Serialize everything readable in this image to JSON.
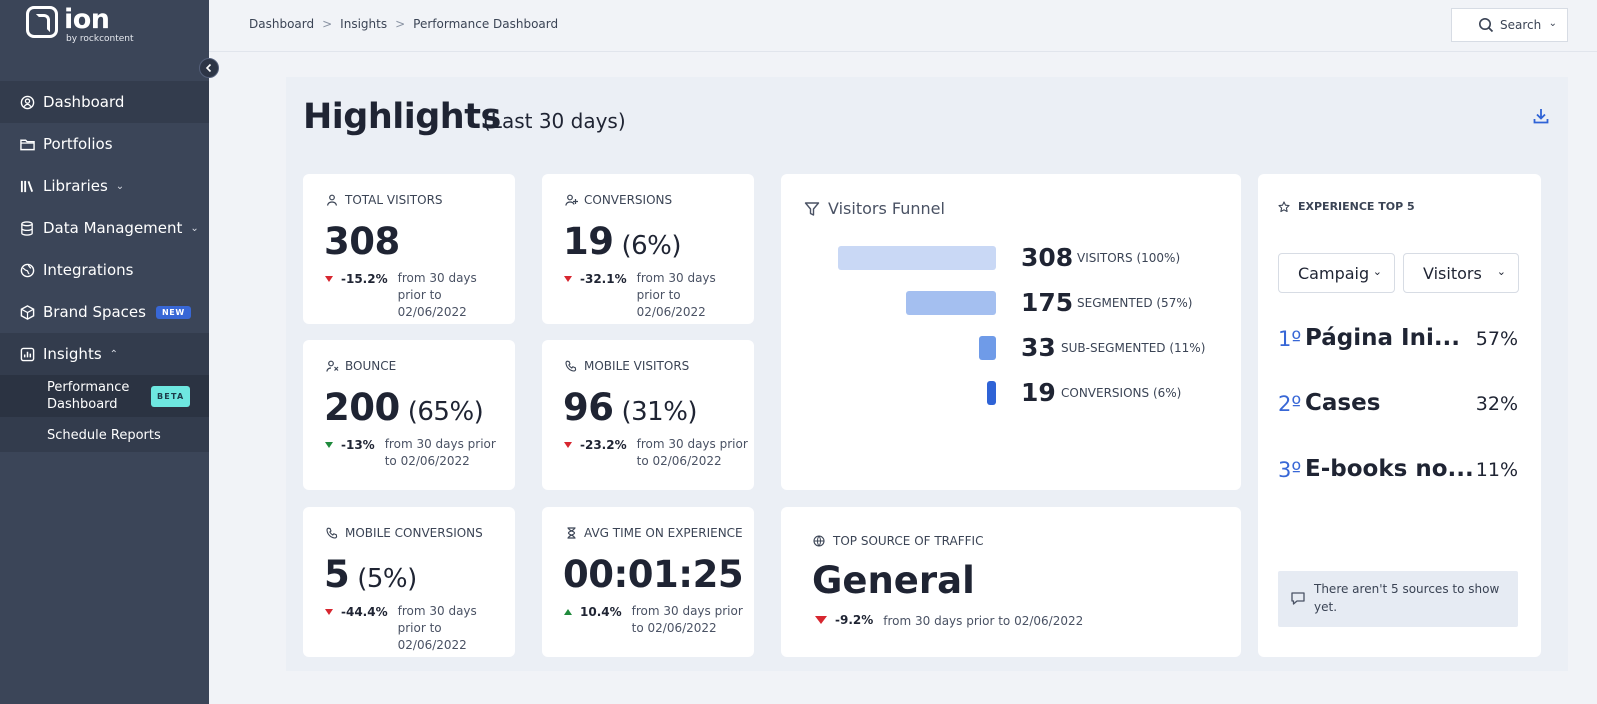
{
  "brand": {
    "name": "ion",
    "sub": "by rockcontent"
  },
  "sidebar": {
    "items": [
      {
        "label": "Dashboard",
        "icon": "user-circle-icon"
      },
      {
        "label": "Portfolios",
        "icon": "folder-icon"
      },
      {
        "label": "Libraries",
        "icon": "library-icon"
      },
      {
        "label": "Data Management",
        "icon": "database-icon"
      },
      {
        "label": "Integrations",
        "icon": "globe-icon"
      },
      {
        "label": "Brand Spaces",
        "icon": "cube-icon",
        "badge": "NEW"
      },
      {
        "label": "Insights",
        "icon": "bar-chart-icon"
      }
    ],
    "subitems": [
      {
        "label": "Performance Dashboard",
        "badge": "BETA"
      },
      {
        "label": "Schedule Reports"
      }
    ]
  },
  "breadcrumb": {
    "items": [
      "Dashboard",
      "Insights",
      "Performance Dashboard"
    ],
    "separator": ">"
  },
  "search": {
    "label": "Search"
  },
  "highlights": {
    "title": "Highlights",
    "subtitle": "(Last 30 days)"
  },
  "metrics": {
    "total_visitors": {
      "label": "TOTAL VISITORS",
      "value": "308",
      "pct": "",
      "delta": "-15.2%",
      "note": "from 30 days prior to 02/06/2022"
    },
    "conversions": {
      "label": "CONVERSIONS",
      "value": "19",
      "pct": "(6%)",
      "delta": "-32.1%",
      "note": "from 30 days prior to 02/06/2022"
    },
    "bounce": {
      "label": "BOUNCE",
      "value": "200",
      "pct": "(65%)",
      "delta": "-13%",
      "note": "from 30 days prior to 02/06/2022"
    },
    "mobile_visitors": {
      "label": "MOBILE VISITORS",
      "value": "96",
      "pct": "(31%)",
      "delta": "-23.2%",
      "note": "from 30 days prior to 02/06/2022"
    },
    "mobile_conversions": {
      "label": "MOBILE CONVERSIONS",
      "value": "5",
      "pct": "(5%)",
      "delta": "-44.4%",
      "note": "from 30 days prior to 02/06/2022"
    },
    "avg_time": {
      "label": "AVG TIME ON EXPERIENCE",
      "value": "00:01:25",
      "pct": "",
      "delta": "10.4%",
      "note": "from 30 days prior to 02/06/2022"
    }
  },
  "funnel": {
    "title": "Visitors Funnel",
    "rows": [
      {
        "value": "308",
        "label": "VISITORS (100%)",
        "fraction": 1.0,
        "color": "#c9d8f5"
      },
      {
        "value": "175",
        "label": "SEGMENTED (57%)",
        "fraction": 0.57,
        "color": "#a4bff0"
      },
      {
        "value": "33",
        "label": "SUB-SEGMENTED (11%)",
        "fraction": 0.11,
        "color": "#6f9be8"
      },
      {
        "value": "19",
        "label": "CONVERSIONS (6%)",
        "fraction": 0.06,
        "color": "#2f63d6"
      }
    ]
  },
  "top_source": {
    "label": "TOP SOURCE OF TRAFFIC",
    "value": "General",
    "delta": "-9.2%",
    "note": "from 30 days prior to 02/06/2022"
  },
  "experience": {
    "label": "EXPERIENCE TOP 5",
    "select_campaign": "Campaig",
    "select_metric": "Visitors",
    "ranks": [
      {
        "no": "1º",
        "name": "Página Ini...",
        "pct": "57%"
      },
      {
        "no": "2º",
        "name": "Cases",
        "pct": "32%"
      },
      {
        "no": "3º",
        "name": "E-books no...",
        "pct": "11%"
      }
    ],
    "notice": "There aren't 5 sources to show yet."
  },
  "colors": {
    "sidebar": "#3b4558",
    "accent": "#3867d6",
    "down": "#d7262f",
    "up": "#1f8a3c"
  }
}
